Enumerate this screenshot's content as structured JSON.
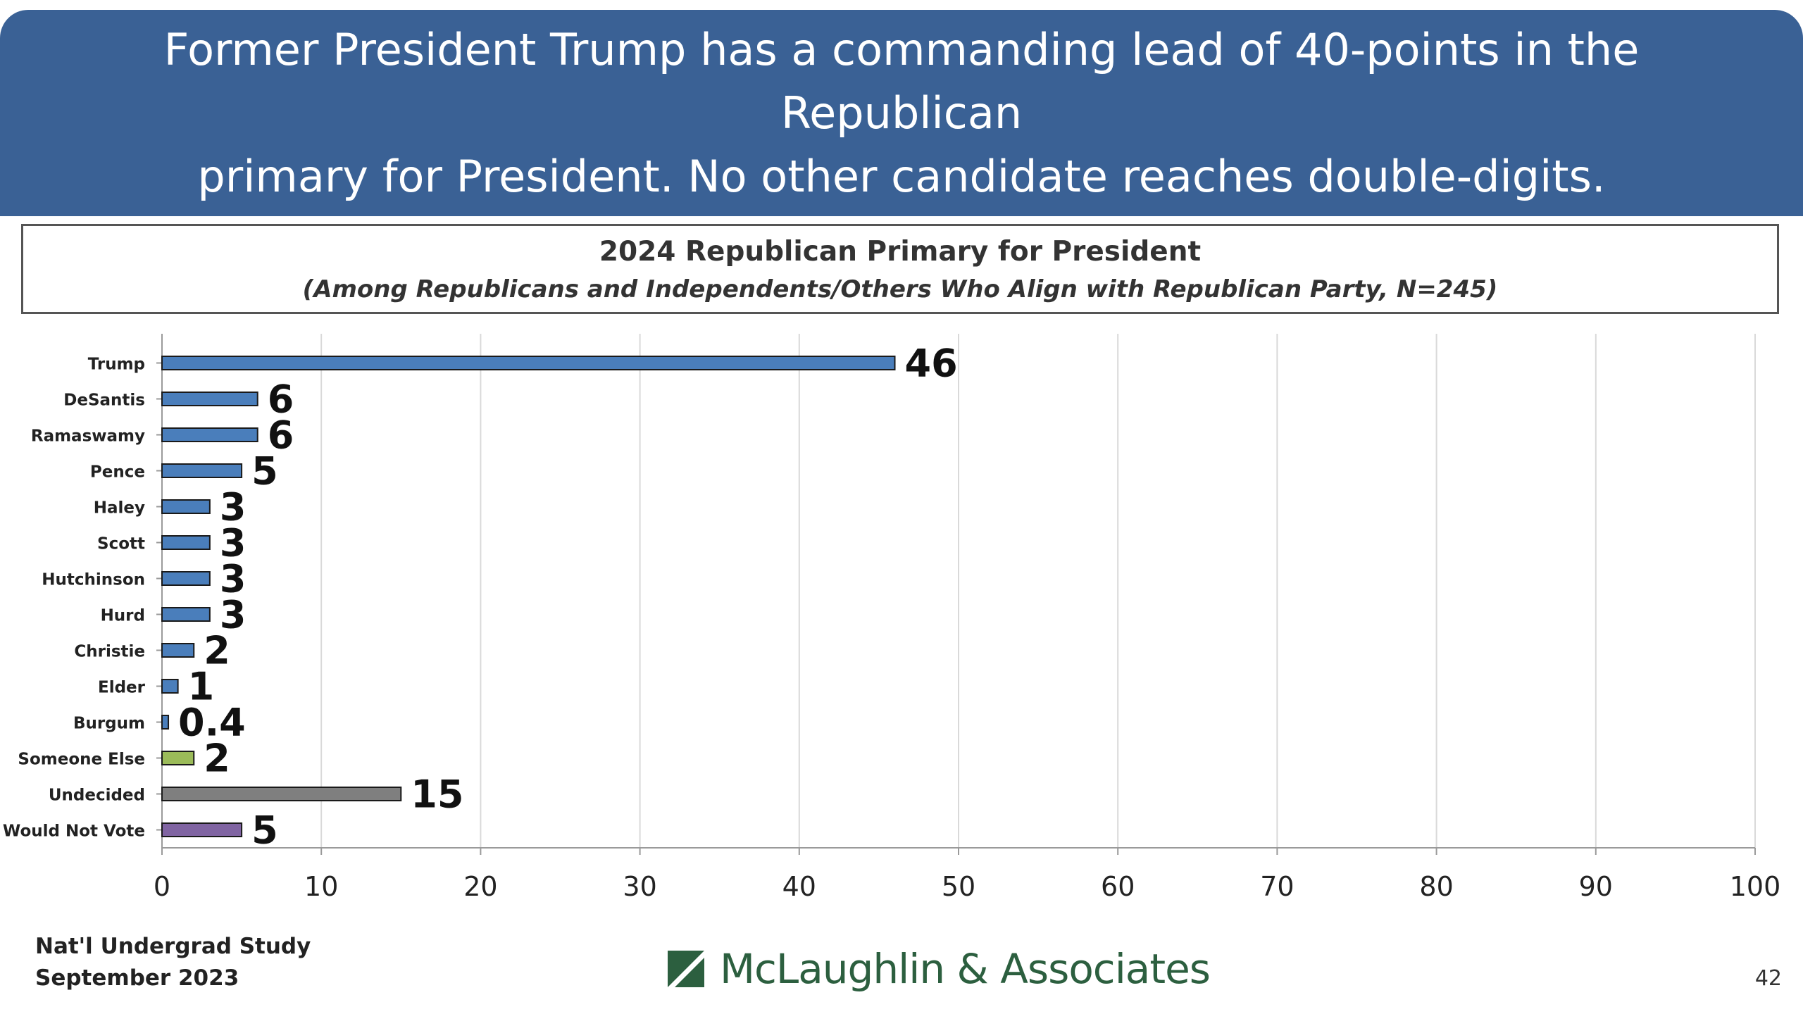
{
  "header": {
    "line1": "Former President Trump has a commanding lead of 40-points in the Republican",
    "line2": "primary for President. No other candidate reaches double-digits."
  },
  "chart_data": {
    "type": "bar",
    "orientation": "horizontal",
    "title": "2024 Republican Primary for President",
    "subtitle": "(Among Republicans and Independents/Others Who Align with Republican Party, N=245)",
    "categories": [
      "Trump",
      "DeSantis",
      "Ramaswamy",
      "Pence",
      "Haley",
      "Scott",
      "Hutchinson",
      "Hurd",
      "Christie",
      "Elder",
      "Burgum",
      "Someone Else",
      "Undecided",
      "Would Not Vote"
    ],
    "values": [
      46,
      6,
      6,
      5,
      3,
      3,
      3,
      3,
      2,
      1,
      0.4,
      2,
      15,
      5
    ],
    "value_labels": [
      "46",
      "6",
      "6",
      "5",
      "3",
      "3",
      "3",
      "3",
      "2",
      "1",
      "0.4",
      "2",
      "15",
      "5"
    ],
    "bar_colors": [
      "#4a7ebb",
      "#4a7ebb",
      "#4a7ebb",
      "#4a7ebb",
      "#4a7ebb",
      "#4a7ebb",
      "#4a7ebb",
      "#4a7ebb",
      "#4a7ebb",
      "#4a7ebb",
      "#4a7ebb",
      "#9bbb59",
      "#7f7f7f",
      "#8064a2"
    ],
    "xlim": [
      0,
      100
    ],
    "xticks": [
      0,
      10,
      20,
      30,
      40,
      50,
      60,
      70,
      80,
      90,
      100
    ],
    "grid": true,
    "legend": "none"
  },
  "footer": {
    "source_line1": "Nat'l Undergrad Study",
    "source_line2": "September 2023",
    "logo_text": "McLaughlin & Associates",
    "page_number": "42"
  },
  "colors": {
    "banner": "#3a6195",
    "logo_green": "#2c5f3f",
    "grid": "#d9d9d9"
  }
}
